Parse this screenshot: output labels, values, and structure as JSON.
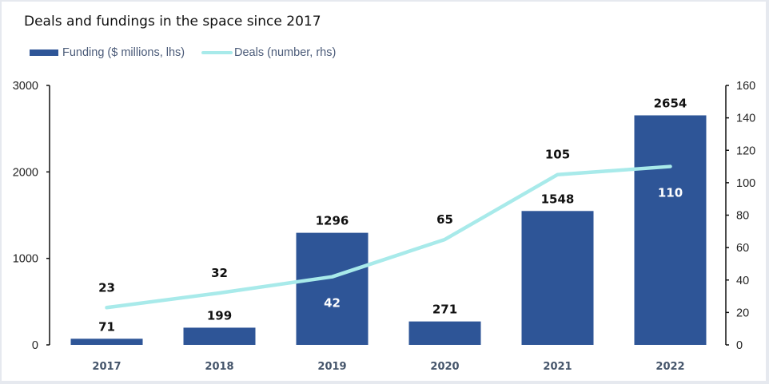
{
  "chart_data": {
    "type": "bar",
    "title": "Deals and fundings in the space since 2017",
    "categories": [
      "2017",
      "2018",
      "2019",
      "2020",
      "2021",
      "2022"
    ],
    "series": [
      {
        "name": "Funding ($ millions, lhs)",
        "type": "bar",
        "axis": "left",
        "color": "#2e5597",
        "values": [
          71,
          199,
          1296,
          271,
          1548,
          2654
        ],
        "labels": [
          "71",
          "199",
          "1296",
          "271",
          "1548",
          "2654"
        ]
      },
      {
        "name": "Deals (number, rhs)",
        "type": "line",
        "axis": "right",
        "color": "#a8eaea",
        "values": [
          23,
          32,
          42,
          65,
          105,
          110
        ],
        "labels": [
          "23",
          "32",
          "42",
          "65",
          "105",
          "110"
        ],
        "label_inside_bar": [
          false,
          false,
          true,
          false,
          false,
          true
        ]
      }
    ],
    "y_left": {
      "label": "",
      "ylim": [
        0,
        3000
      ],
      "ticks": [
        0,
        1000,
        2000,
        3000
      ],
      "tick_labels": [
        "0",
        "1000",
        "2000",
        "3000"
      ]
    },
    "y_right": {
      "label": "",
      "ylim": [
        0,
        160
      ],
      "ticks": [
        0,
        20,
        40,
        60,
        80,
        100,
        120,
        140,
        160
      ],
      "tick_labels": [
        "0",
        "20",
        "40",
        "60",
        "80",
        "100",
        "120",
        "140",
        "160"
      ]
    },
    "xlabel": "",
    "grid": false,
    "legend_position": "top-left"
  }
}
